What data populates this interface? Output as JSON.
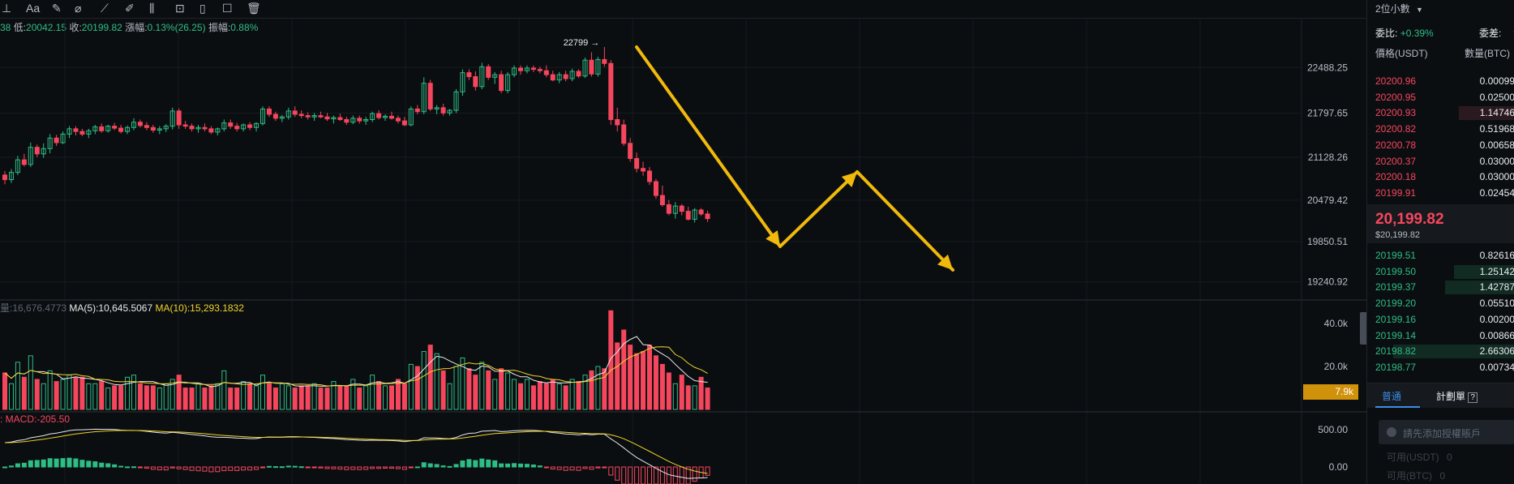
{
  "toolbar": {
    "text_tool": "Aa"
  },
  "info": {
    "prefix": "38",
    "low_label": "低:",
    "low": "20042.15",
    "close_label": "收:",
    "close": "20199.82",
    "change_label": "漲幅:",
    "change": "0.13%(26.25)",
    "amplitude_label": "振幅:",
    "amplitude": "0.88%"
  },
  "volume_legend": {
    "vol": "量:16,676.4773",
    "ma5": "MA(5):10,645.5067",
    "ma10": "MA(10):15,293.1832"
  },
  "macd_legend": {
    "text": ": MACD:-205.50"
  },
  "volume_tag": "7.9k",
  "orderbook": {
    "decimals": "2位小數",
    "ratio_label": "委比:",
    "ratio": "+0.39%",
    "diff_label": "委差:",
    "diff": "+",
    "col_price": "價格(USDT)",
    "col_qty": "數量(BTC)",
    "asks": [
      {
        "price": "20200.96",
        "qty": "0.00099"
      },
      {
        "price": "20200.95",
        "qty": "0.02500"
      },
      {
        "price": "20200.93",
        "qty": "1.14746"
      },
      {
        "price": "20200.82",
        "qty": "0.51968"
      },
      {
        "price": "20200.78",
        "qty": "0.00658"
      },
      {
        "price": "20200.37",
        "qty": "0.03000"
      },
      {
        "price": "20200.18",
        "qty": "0.03000"
      },
      {
        "price": "20199.91",
        "qty": "0.02454"
      }
    ],
    "last_price": "20,199.82",
    "last_price_usd": "$20,199.82",
    "bids": [
      {
        "price": "20199.51",
        "qty": "0.82616"
      },
      {
        "price": "20199.50",
        "qty": "1.25142"
      },
      {
        "price": "20199.37",
        "qty": "1.42787"
      },
      {
        "price": "20199.20",
        "qty": "0.05510"
      },
      {
        "price": "20199.16",
        "qty": "0.00200"
      },
      {
        "price": "20199.14",
        "qty": "0.00866"
      },
      {
        "price": "20198.82",
        "qty": "2.66306"
      },
      {
        "price": "20198.77",
        "qty": "0.00734"
      }
    ],
    "tab_normal": "普通",
    "tab_plan": "計劃單",
    "hint": "請先添加授權賬戶",
    "avail_usdt": "可用(USDT)",
    "avail_usdt_val": "0",
    "avail_btc": "可用(BTC)",
    "avail_btc_val": "0"
  },
  "colors": {
    "up": "#2ebd85",
    "down": "#f6465d",
    "annotation_arrow": "#f0b90b",
    "ma10": "#f0d42a",
    "ma5": "#e8e8e8"
  },
  "chart_data": [
    {
      "type": "candlestick",
      "title": "",
      "price_ticks": [
        22488.25,
        21797.65,
        21128.26,
        20479.42,
        19850.51,
        19240.92
      ],
      "ylim": [
        19090,
        23020
      ],
      "high_marker": "22799",
      "ohlc": [
        [
          20860,
          20920,
          20720,
          20790
        ],
        [
          20790,
          20950,
          20740,
          20900
        ],
        [
          20900,
          21150,
          20860,
          21090
        ],
        [
          21090,
          21180,
          20990,
          21020
        ],
        [
          21020,
          21350,
          20980,
          21280
        ],
        [
          21280,
          21320,
          21130,
          21180
        ],
        [
          21180,
          21340,
          21120,
          21260
        ],
        [
          21260,
          21480,
          21190,
          21420
        ],
        [
          21420,
          21470,
          21300,
          21350
        ],
        [
          21350,
          21520,
          21330,
          21480
        ],
        [
          21480,
          21600,
          21420,
          21560
        ],
        [
          21560,
          21600,
          21460,
          21520
        ],
        [
          21520,
          21560,
          21450,
          21480
        ],
        [
          21480,
          21560,
          21420,
          21530
        ],
        [
          21530,
          21620,
          21480,
          21590
        ],
        [
          21590,
          21640,
          21500,
          21530
        ],
        [
          21530,
          21620,
          21500,
          21600
        ],
        [
          21600,
          21650,
          21540,
          21570
        ],
        [
          21570,
          21620,
          21490,
          21520
        ],
        [
          21520,
          21610,
          21480,
          21580
        ],
        [
          21580,
          21720,
          21540,
          21660
        ],
        [
          21660,
          21700,
          21580,
          21610
        ],
        [
          21610,
          21660,
          21540,
          21580
        ],
        [
          21580,
          21620,
          21500,
          21540
        ],
        [
          21540,
          21600,
          21480,
          21560
        ],
        [
          21560,
          21630,
          21510,
          21600
        ],
        [
          21600,
          21880,
          21550,
          21830
        ],
        [
          21830,
          21870,
          21560,
          21620
        ],
        [
          21620,
          21680,
          21560,
          21600
        ],
        [
          21600,
          21640,
          21520,
          21560
        ],
        [
          21560,
          21620,
          21500,
          21580
        ],
        [
          21580,
          21640,
          21520,
          21560
        ],
        [
          21560,
          21600,
          21480,
          21510
        ],
        [
          21510,
          21580,
          21460,
          21560
        ],
        [
          21560,
          21700,
          21520,
          21650
        ],
        [
          21650,
          21700,
          21560,
          21600
        ],
        [
          21600,
          21650,
          21520,
          21560
        ],
        [
          21560,
          21640,
          21520,
          21620
        ],
        [
          21620,
          21660,
          21540,
          21580
        ],
        [
          21580,
          21660,
          21520,
          21640
        ],
        [
          21640,
          21900,
          21610,
          21860
        ],
        [
          21860,
          21900,
          21740,
          21780
        ],
        [
          21780,
          21820,
          21680,
          21720
        ],
        [
          21720,
          21770,
          21660,
          21740
        ],
        [
          21740,
          21880,
          21700,
          21830
        ],
        [
          21830,
          21900,
          21740,
          21780
        ],
        [
          21780,
          21840,
          21720,
          21760
        ],
        [
          21760,
          21810,
          21700,
          21740
        ],
        [
          21740,
          21800,
          21680,
          21760
        ],
        [
          21760,
          21820,
          21720,
          21740
        ],
        [
          21740,
          21800,
          21680,
          21710
        ],
        [
          21710,
          21760,
          21640,
          21730
        ],
        [
          21730,
          21790,
          21680,
          21700
        ],
        [
          21700,
          21740,
          21620,
          21660
        ],
        [
          21660,
          21760,
          21630,
          21720
        ],
        [
          21720,
          21760,
          21640,
          21680
        ],
        [
          21680,
          21740,
          21620,
          21700
        ],
        [
          21700,
          21820,
          21660,
          21790
        ],
        [
          21790,
          21840,
          21700,
          21730
        ],
        [
          21730,
          21780,
          21680,
          21750
        ],
        [
          21750,
          21820,
          21700,
          21720
        ],
        [
          21720,
          21760,
          21640,
          21680
        ],
        [
          21680,
          21740,
          21600,
          21620
        ],
        [
          21620,
          21900,
          21600,
          21860
        ],
        [
          21860,
          21920,
          21780,
          21820
        ],
        [
          21820,
          22340,
          21780,
          22250
        ],
        [
          22250,
          22300,
          21830,
          21860
        ],
        [
          21860,
          21920,
          21780,
          21880
        ],
        [
          21880,
          21940,
          21760,
          21800
        ],
        [
          21800,
          21860,
          21760,
          21840
        ],
        [
          21840,
          22160,
          21800,
          22120
        ],
        [
          22120,
          22460,
          22060,
          22410
        ],
        [
          22410,
          22460,
          22300,
          22350
        ],
        [
          22350,
          22430,
          22140,
          22200
        ],
        [
          22200,
          22560,
          22160,
          22500
        ],
        [
          22500,
          22540,
          22300,
          22340
        ],
        [
          22340,
          22420,
          22240,
          22380
        ],
        [
          22380,
          22440,
          22100,
          22140
        ],
        [
          22140,
          22420,
          22100,
          22380
        ],
        [
          22380,
          22520,
          22340,
          22480
        ],
        [
          22480,
          22520,
          22380,
          22440
        ],
        [
          22440,
          22520,
          22400,
          22480
        ],
        [
          22480,
          22520,
          22420,
          22460
        ],
        [
          22460,
          22500,
          22400,
          22440
        ],
        [
          22440,
          22520,
          22340,
          22380
        ],
        [
          22380,
          22440,
          22280,
          22300
        ],
        [
          22300,
          22420,
          22250,
          22380
        ],
        [
          22380,
          22440,
          22280,
          22320
        ],
        [
          22320,
          22470,
          22280,
          22430
        ],
        [
          22430,
          22460,
          22330,
          22360
        ],
        [
          22360,
          22640,
          22330,
          22600
        ],
        [
          22600,
          22720,
          22350,
          22390
        ],
        [
          22390,
          22650,
          22350,
          22610
        ],
        [
          22610,
          22799,
          22500,
          22550
        ],
        [
          22550,
          22600,
          21620,
          21700
        ],
        [
          21700,
          21880,
          21520,
          21620
        ],
        [
          21620,
          21700,
          21300,
          21340
        ],
        [
          21340,
          21420,
          21060,
          21110
        ],
        [
          21110,
          21200,
          20900,
          20960
        ],
        [
          20960,
          21060,
          20850,
          20920
        ],
        [
          20920,
          20980,
          20710,
          20760
        ],
        [
          20760,
          20800,
          20500,
          20550
        ],
        [
          20550,
          20700,
          20380,
          20410
        ],
        [
          20410,
          20480,
          20250,
          20280
        ],
        [
          20280,
          20450,
          20200,
          20390
        ],
        [
          20390,
          20420,
          20250,
          20310
        ],
        [
          20310,
          20380,
          20170,
          20190
        ],
        [
          20190,
          20360,
          20140,
          20330
        ],
        [
          20330,
          20360,
          20240,
          20270
        ],
        [
          20270,
          20320,
          20150,
          20200
        ]
      ],
      "volume_ticks": [
        "40.0k",
        "20.0k"
      ],
      "volume_max": 48000,
      "volume": [
        17000,
        12000,
        22000,
        15000,
        25000,
        14000,
        12000,
        18000,
        13000,
        14000,
        16000,
        15000,
        15000,
        12000,
        12000,
        13000,
        10000,
        11000,
        11000,
        15000,
        16000,
        12000,
        11000,
        11000,
        10000,
        12000,
        14000,
        16000,
        10000,
        10000,
        12000,
        10000,
        11000,
        12000,
        18000,
        10000,
        10000,
        13000,
        12000,
        11000,
        16000,
        12000,
        10000,
        12000,
        11000,
        10000,
        11000,
        11000,
        12000,
        10000,
        10000,
        13000,
        11000,
        11000,
        14000,
        10000,
        11000,
        16000,
        13000,
        11000,
        11000,
        14000,
        12000,
        21000,
        20000,
        27000,
        30000,
        26000,
        18000,
        12000,
        20000,
        24000,
        19000,
        16000,
        22000,
        18000,
        14000,
        19000,
        17000,
        14000,
        12000,
        14000,
        11000,
        13000,
        12000,
        14000,
        12000,
        11000,
        14000,
        13000,
        16000,
        18000,
        20000,
        19000,
        46000,
        31000,
        37000,
        30000,
        26000,
        27000,
        30000,
        25000,
        21000,
        17000,
        12000,
        16000,
        11000,
        11000,
        15000,
        10000
      ],
      "macd_ticks": [
        "500.00",
        "0.00"
      ],
      "macd_histogram_note": "hist bars red below zero at the end"
    }
  ]
}
